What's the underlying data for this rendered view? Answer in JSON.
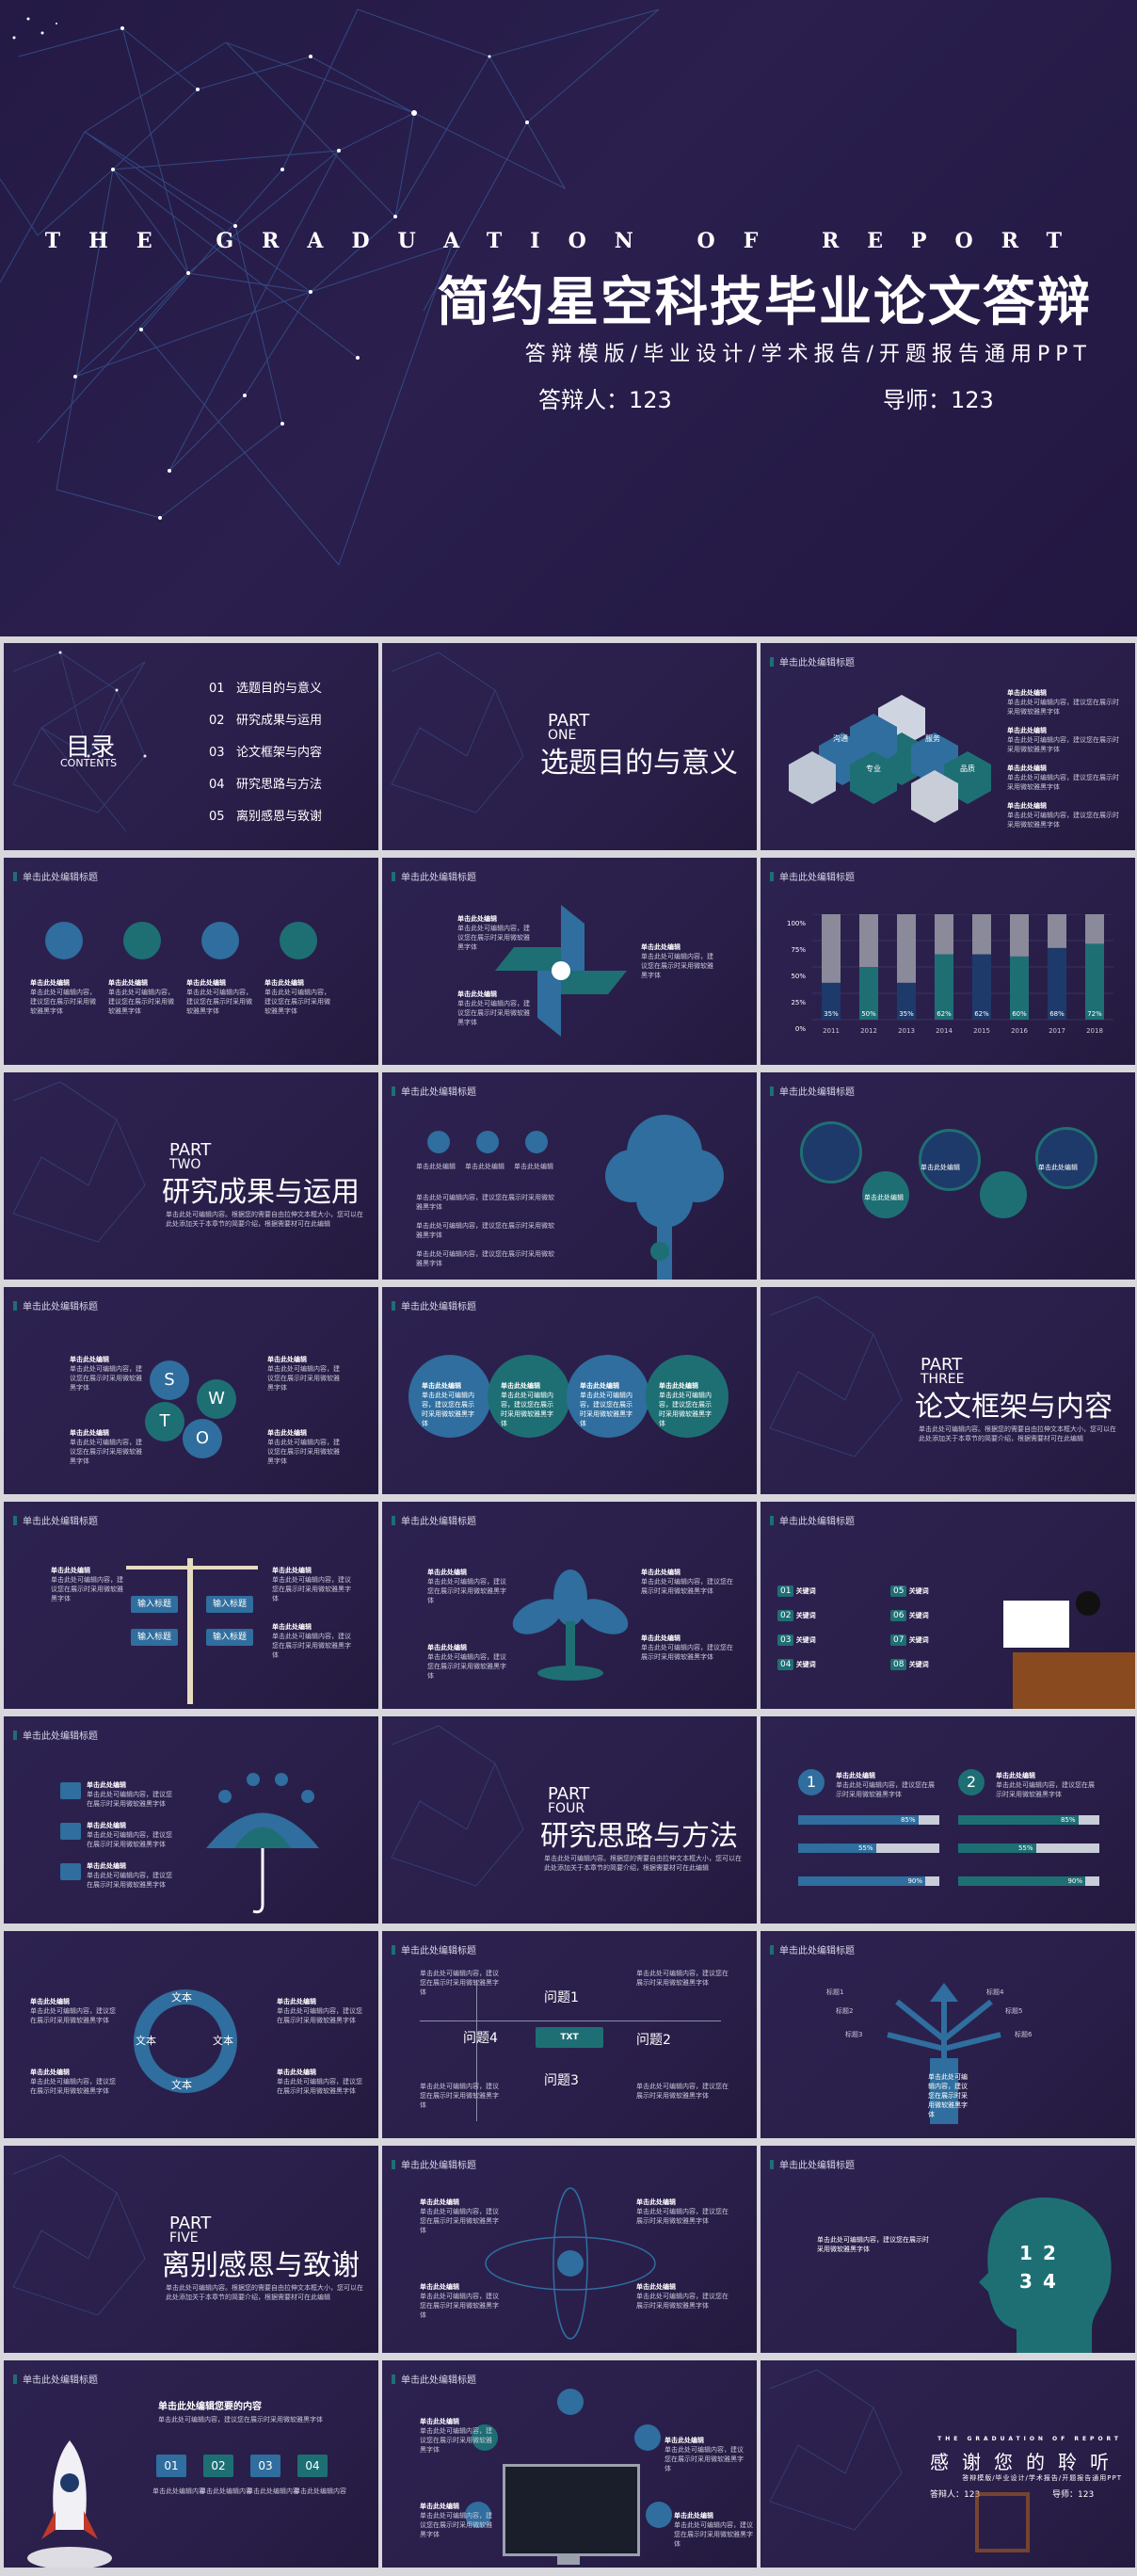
{
  "cover": {
    "title_en": "THE GRADUATION OF REPORT",
    "title_cn": "简约星空科技毕业论文答辩",
    "subtitle": "答辩模版/毕业设计/学术报告/开题报告通用PPT",
    "presenter": "答辩人：123",
    "advisor": "导师：123"
  },
  "toc": {
    "title": "目录",
    "title_en": "CONTENTS",
    "items": [
      {
        "num": "01",
        "label": "选题目的与意义"
      },
      {
        "num": "02",
        "label": "研究成果与运用"
      },
      {
        "num": "03",
        "label": "论文框架与内容"
      },
      {
        "num": "04",
        "label": "研究思路与方法"
      },
      {
        "num": "05",
        "label": "离别感恩与致谢"
      }
    ]
  },
  "slide_header": "单击此处编辑标题",
  "sections": [
    {
      "part": "PART",
      "part_num": "ONE",
      "title": "选题目的与意义"
    },
    {
      "part": "PART",
      "part_num": "TWO",
      "title": "研究成果与运用"
    },
    {
      "part": "PART",
      "part_num": "THREE",
      "title": "论文框架与内容"
    },
    {
      "part": "PART",
      "part_num": "FOUR",
      "title": "研究思路与方法"
    },
    {
      "part": "PART",
      "part_num": "FIVE",
      "title": "离别感恩与致谢"
    }
  ],
  "section_desc": "单击此处可编辑内容。根据您的需要自由拉伸文本框大小，您可以在此处添加关于本章节的简要介绍，根据需要材可在此编辑",
  "edit_text": "单击此处编辑",
  "edit_body": "单击此处可编辑内容，建议您在展示时采用微软雅黑字体",
  "hex": {
    "labels": [
      "沟通",
      "专业",
      "服务",
      "品质"
    ]
  },
  "bar_chart": {
    "y_ticks": [
      "100%",
      "75%",
      "50%",
      "25%",
      "0%"
    ],
    "years": [
      "2011",
      "2012",
      "2013",
      "2014",
      "2015",
      "2016",
      "2017",
      "2018"
    ],
    "labels": [
      "35%",
      "50%",
      "35%",
      "62%",
      "62%",
      "60%",
      "68%",
      "72%"
    ]
  },
  "chart_data": {
    "type": "bar",
    "categories": [
      "2011",
      "2012",
      "2013",
      "2014",
      "2015",
      "2016",
      "2017",
      "2018"
    ],
    "series": [
      {
        "values": [
          35,
          50,
          35,
          62,
          62,
          60,
          68,
          72
        ]
      }
    ],
    "ylim": [
      0,
      100
    ],
    "yticks": [
      "0%",
      "25%",
      "50%",
      "75%",
      "100%"
    ]
  },
  "swot": [
    "S",
    "W",
    "T",
    "O"
  ],
  "signpost": {
    "labels": [
      "输入标题",
      "输入标题",
      "输入标题",
      "输入标题"
    ]
  },
  "keywords": {
    "nums": [
      "01",
      "02",
      "03",
      "04",
      "05",
      "06",
      "07",
      "08"
    ],
    "label": "关键词"
  },
  "progress": {
    "nums": [
      "1",
      "2"
    ],
    "bars": [
      "85%",
      "85%",
      "55%",
      "55%",
      "90%",
      "90%"
    ]
  },
  "cycle": {
    "labels": [
      "文本",
      "文本",
      "文本",
      "文本"
    ]
  },
  "problems": [
    "问题1",
    "问题2",
    "问题3",
    "问题4"
  ],
  "problem_center": "TXT",
  "arrows": {
    "labels": [
      "标题1",
      "标题2",
      "标题3",
      "标题4",
      "标题5",
      "标题6"
    ]
  },
  "head_numbers": [
    "1",
    "2",
    "3",
    "4"
  ],
  "rocket_slide": {
    "title": "单击此处编辑您要的内容",
    "nums": [
      "01",
      "02",
      "03",
      "04"
    ],
    "caption": "单击此处编辑内容"
  },
  "thanks": {
    "title_en": "THE GRADUATION OF REPORT",
    "title_cn": "感谢您的聆听",
    "subtitle": "答辩模版/毕业设计/学术报告/开题报告通用PPT",
    "presenter": "答辩人：123",
    "advisor": "导师：123"
  },
  "colors": {
    "bg": "#2a1f4a",
    "teal": "#1e6f74",
    "blue": "#2f6e9e",
    "light_blue": "#4a86c5"
  }
}
